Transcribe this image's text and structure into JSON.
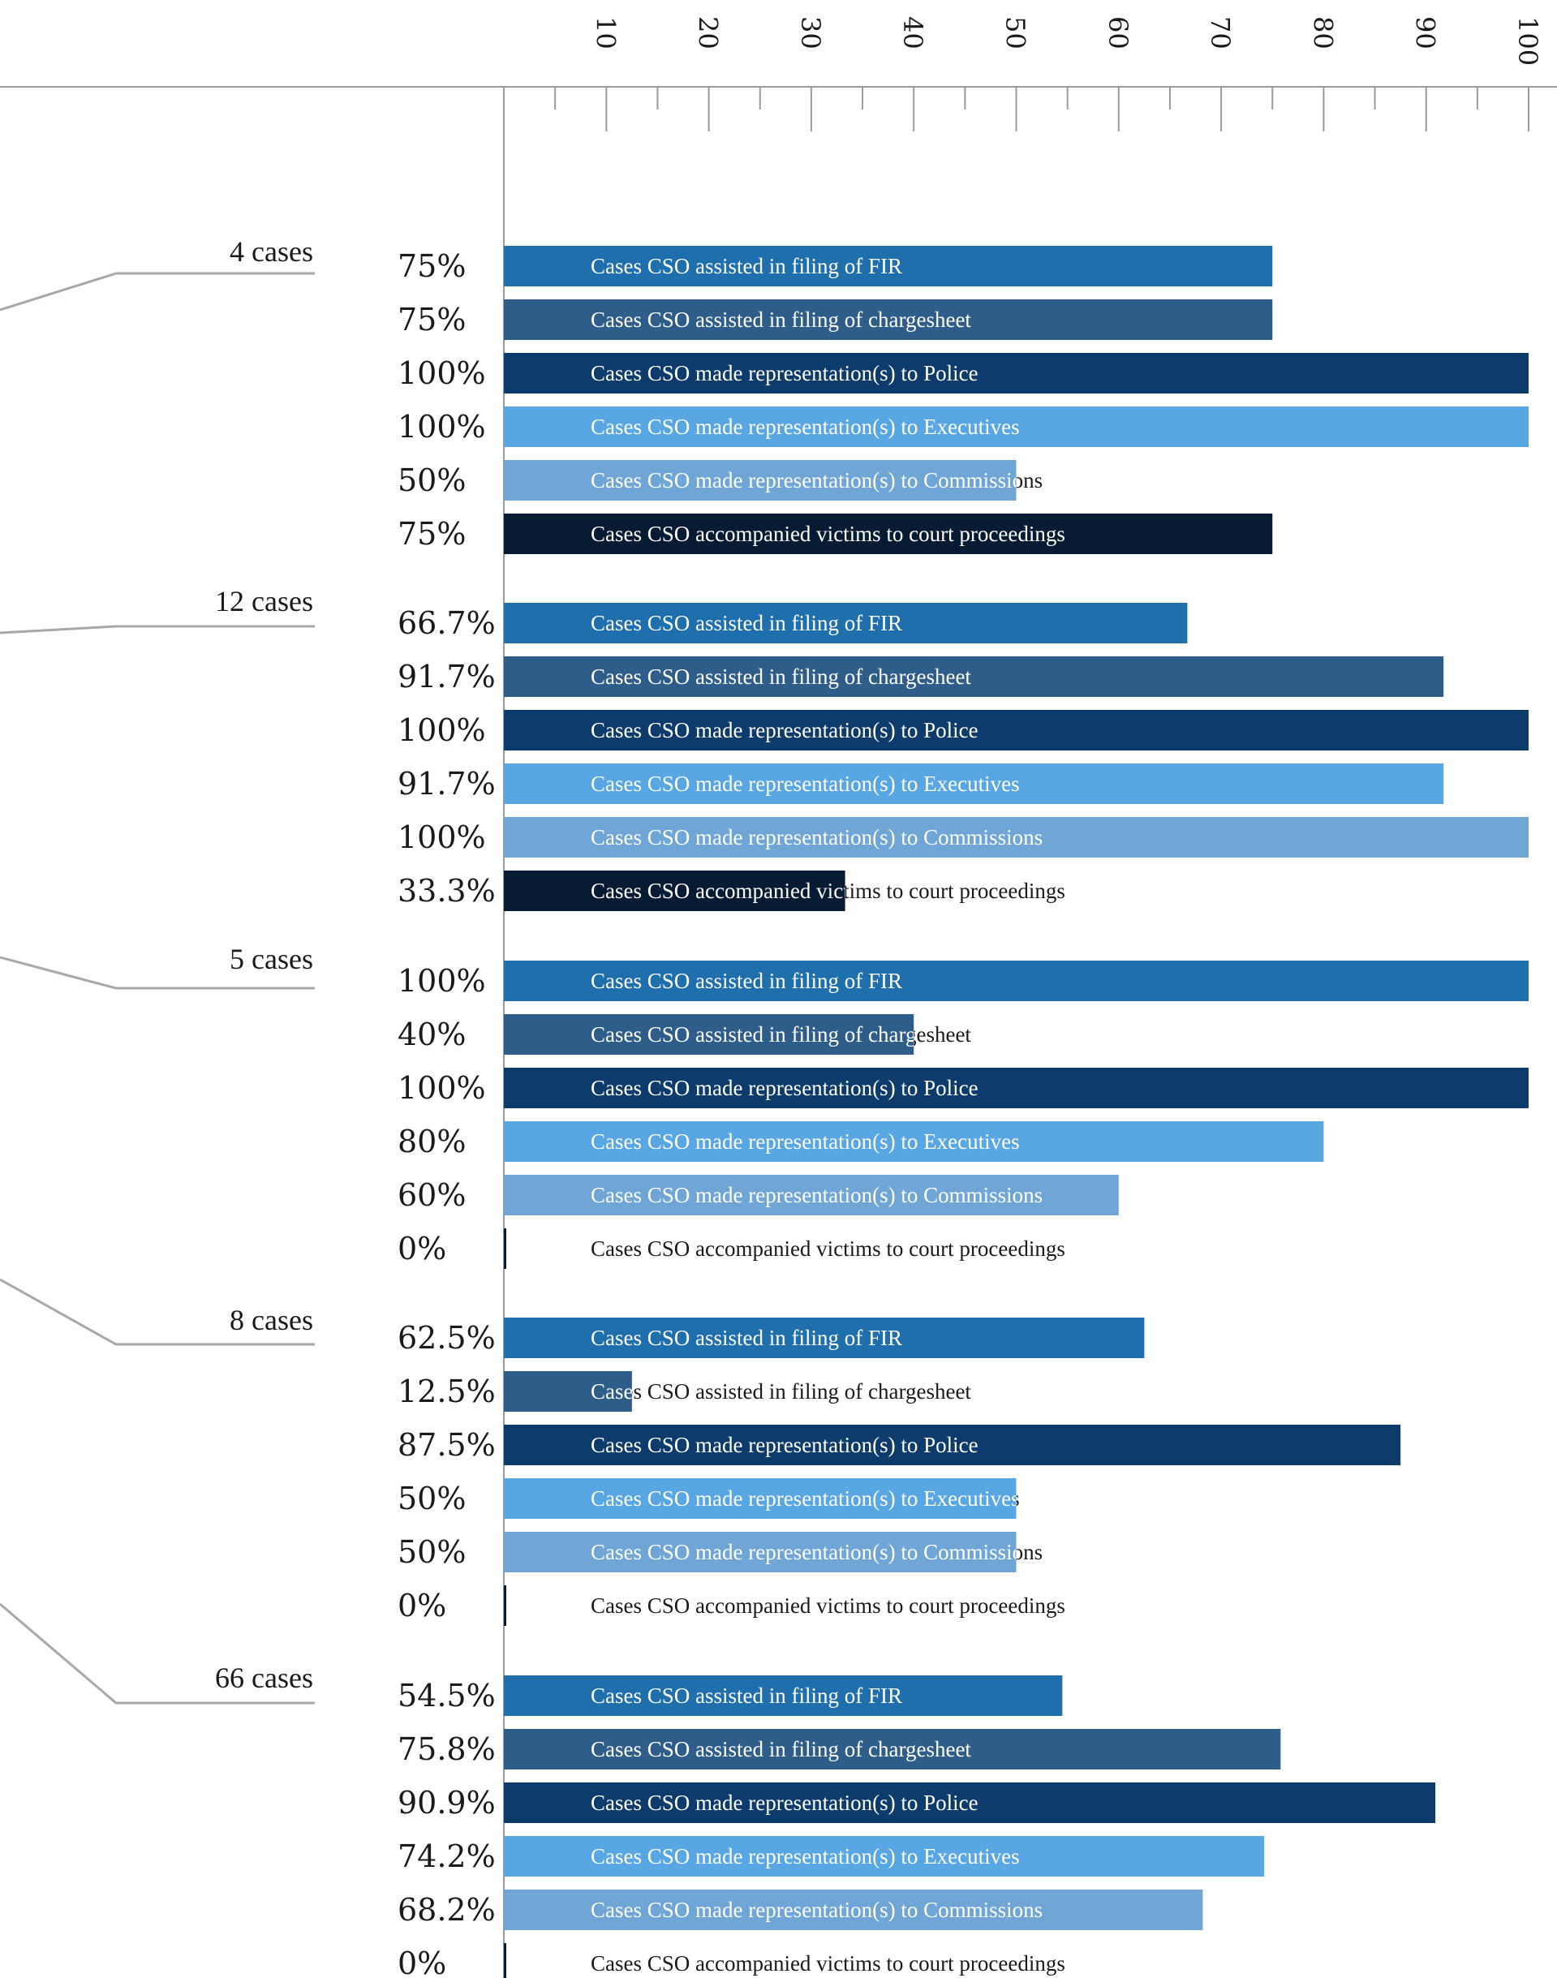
{
  "chart_data": {
    "type": "bar",
    "orientation": "horizontal",
    "xlim": [
      0,
      100
    ],
    "x_ticks": [
      "10",
      "20",
      "30",
      "40",
      "50",
      "60",
      "70",
      "80",
      "90",
      "100"
    ],
    "colors": [
      "#1f6fad",
      "#2f5d8a",
      "#0d3b6b",
      "#58a6e2",
      "#6fa6d6",
      "#071b33"
    ],
    "categories": [
      "Cases CSO assisted in filing of FIR",
      "Cases CSO assisted in filing of chargesheet",
      "Cases CSO made representation(s) to Police",
      "Cases CSO made representation(s) to Executives",
      "Cases CSO made representation(s) to Commissions",
      "Cases CSO accompanied victims to court proceedings"
    ],
    "groups": [
      {
        "count_label": "4 cases",
        "values": [
          75,
          75,
          100,
          100,
          50,
          75
        ],
        "value_labels": [
          "75%",
          "75%",
          "100%",
          "100%",
          "50%",
          "75%"
        ],
        "bar_labels": [
          "Cases CSO assisted in filing of FIR",
          "Cases CSO assisted in filing of chargesheet",
          "Cases CSO made representation(s) to Police",
          "Cases CSO made representation(s) to Executives",
          "Cases CSO made representation(s) to Commissions",
          "Cases CSO accompanied victims to court proceedings"
        ]
      },
      {
        "count_label": "12 cases",
        "values": [
          66.7,
          91.7,
          100,
          91.7,
          100,
          33.3
        ],
        "value_labels": [
          "66.7%",
          "91.7%",
          "100%",
          "91.7%",
          "100%",
          "33.3%"
        ],
        "bar_labels": [
          "Cases CSO assisted in filing of FIR",
          "Cases CSO assisted in filing of chargesheet",
          "Cases CSO made representation(s) to Police",
          "Cases CSO made representation(s) to Executives",
          "Cases CSO made representation(s) to Commissions",
          "Cases CSO accompanied victims to court proceedings"
        ]
      },
      {
        "count_label": "5 cases",
        "values": [
          100,
          40,
          100,
          80,
          60,
          0
        ],
        "value_labels": [
          "100%",
          "40%",
          "100%",
          "80%",
          "60%",
          "0%"
        ],
        "bar_labels": [
          "Cases CSO assisted in filing of FIR",
          "Cases CSO assisted in filing  of chargesheet",
          "Cases CSO made representation(s) to Police",
          "Cases CSO made representation(s) to Executives",
          "Cases CSO made representation(s) to Commissions",
          "Cases CSO accompanied victims to court proceedings"
        ]
      },
      {
        "count_label": "8 cases",
        "values": [
          62.5,
          12.5,
          87.5,
          50,
          50,
          0
        ],
        "value_labels": [
          "62.5%",
          "12.5%",
          "87.5%",
          "50%",
          "50%",
          "0%"
        ],
        "bar_labels": [
          "Cases CSO assisted in filing of FIR",
          "Cases CSO assisted in filing of chargesheet",
          "Cases CSO made representation(s) to Police",
          "Cases CSO made representation(s) to Executives",
          "Cases CSO made representation(s) to Commissions",
          "Cases CSO accompanied victims to court proceedings"
        ]
      },
      {
        "count_label": "66 cases",
        "values": [
          54.5,
          75.8,
          90.9,
          74.2,
          68.2,
          0
        ],
        "value_labels": [
          "54.5%",
          "75.8%",
          "90.9%",
          "74.2%",
          "68.2%",
          "0%"
        ],
        "bar_labels": [
          "Cases CSO assisted in filing of FIR",
          "Cases CSO assisted in filing of chargesheet",
          "Cases CSO made representation(s) to Police",
          "Cases CSO made representation(s) to Executives",
          "Cases CSO made representation(s) to Commissions",
          "Cases CSO accompanied victims to court proceedings"
        ]
      }
    ]
  }
}
